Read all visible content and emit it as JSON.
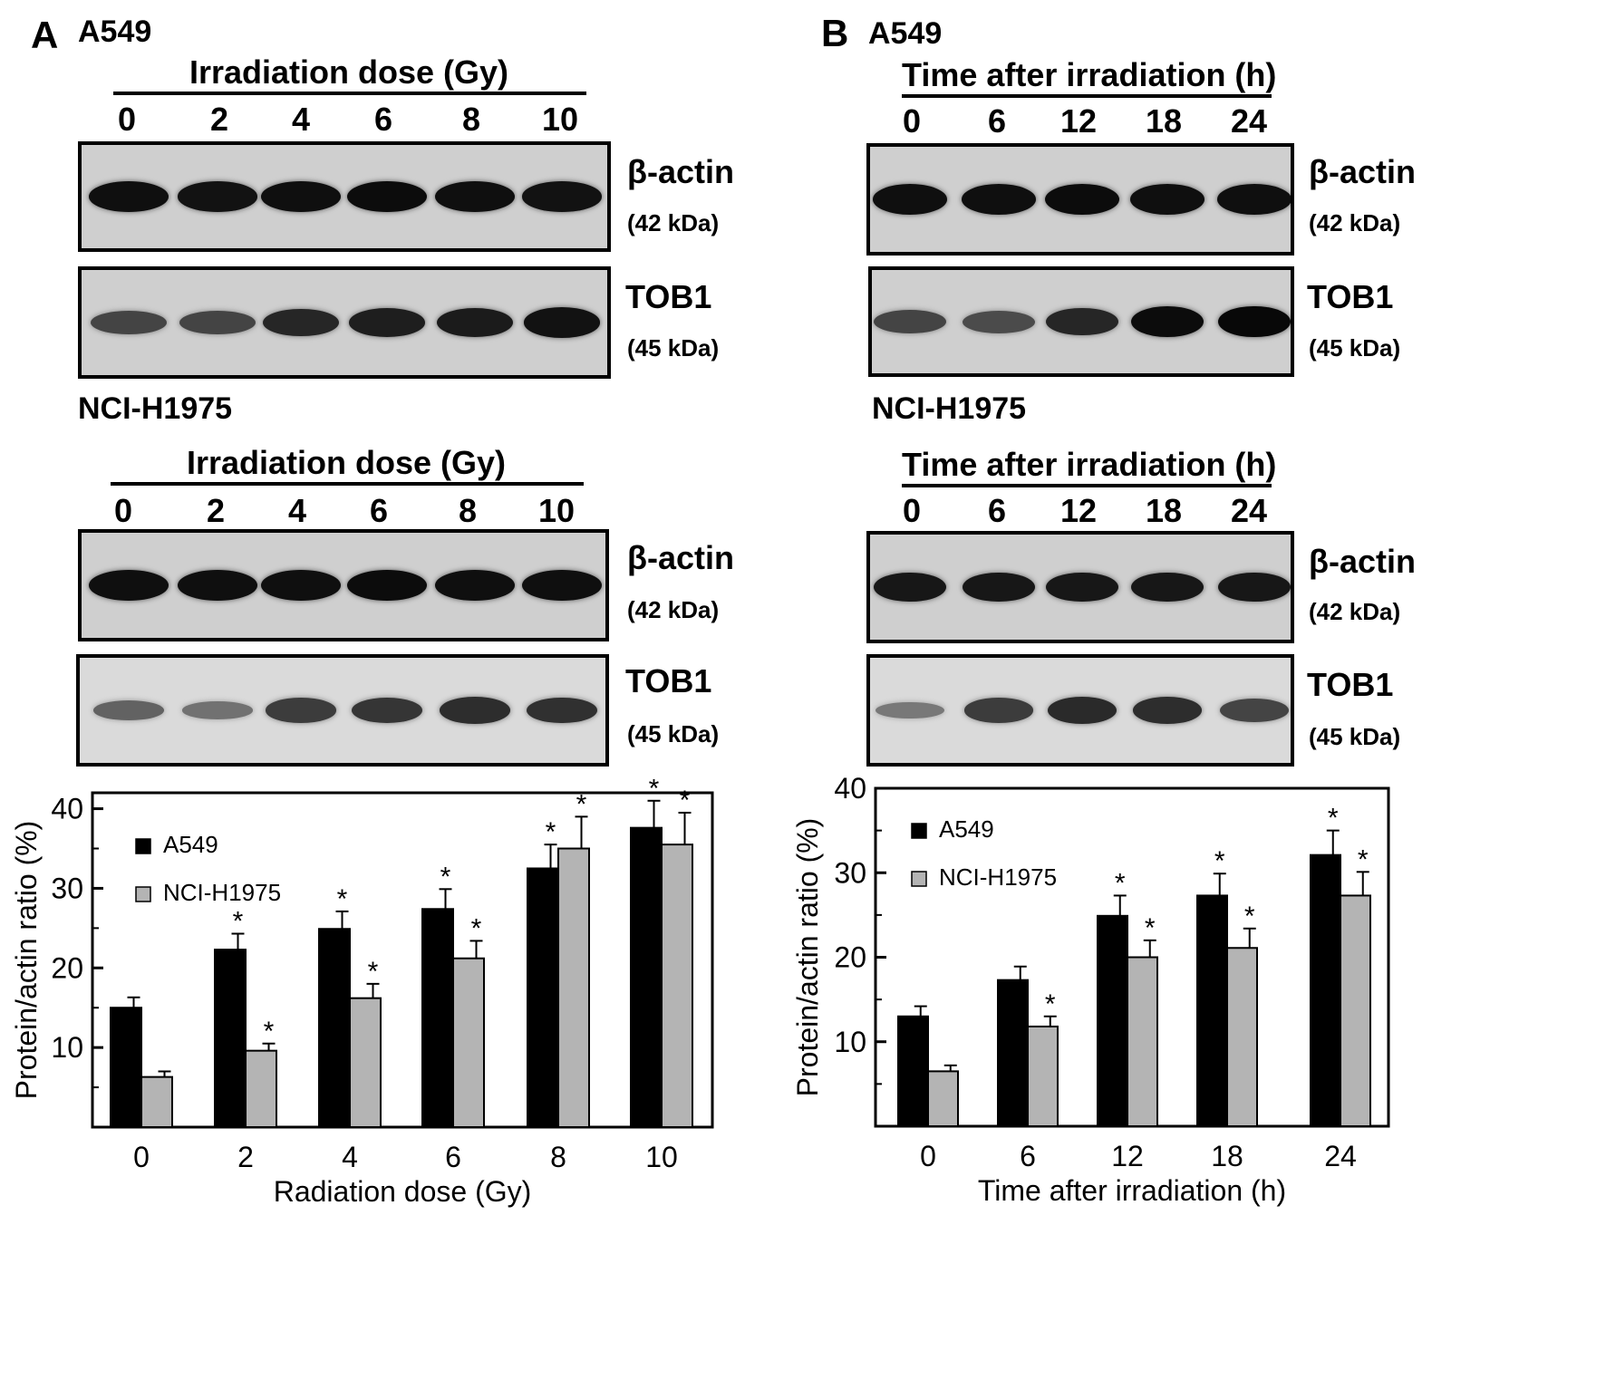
{
  "panelA": {
    "letter": "A",
    "top": {
      "cell_line": "A549",
      "header": "Irradiation dose (Gy)",
      "lanes": [
        "0",
        "2",
        "4",
        "6",
        "8",
        "10"
      ],
      "blots": [
        {
          "name": "β-actin",
          "size": "(42 kDa)",
          "intensity": [
            0.9,
            0.88,
            0.9,
            0.92,
            0.9,
            0.88
          ]
        },
        {
          "name": "TOB1",
          "size": "(45 kDa)",
          "intensity": [
            0.55,
            0.55,
            0.75,
            0.8,
            0.82,
            0.88
          ]
        }
      ]
    },
    "bottom": {
      "cell_line": "NCI-H1975",
      "header": "Irradiation dose (Gy)",
      "lanes": [
        "0",
        "2",
        "4",
        "6",
        "8",
        "10"
      ],
      "blots": [
        {
          "name": "β-actin",
          "size": "(42 kDa)",
          "intensity": [
            0.9,
            0.9,
            0.9,
            0.92,
            0.9,
            0.9
          ]
        },
        {
          "name": "TOB1",
          "size": "(45 kDa)",
          "intensity": [
            0.35,
            0.25,
            0.6,
            0.65,
            0.7,
            0.68
          ]
        }
      ]
    }
  },
  "panelB": {
    "letter": "B",
    "top": {
      "cell_line": "A549",
      "header": "Time after irradiation (h)",
      "lanes": [
        "0",
        "6",
        "12",
        "18",
        "24"
      ],
      "blots": [
        {
          "name": "β-actin",
          "size": "(42 kDa)",
          "intensity": [
            0.9,
            0.9,
            0.92,
            0.9,
            0.9
          ]
        },
        {
          "name": "TOB1",
          "size": "(45 kDa)",
          "intensity": [
            0.55,
            0.5,
            0.75,
            0.92,
            0.95
          ]
        }
      ]
    },
    "bottom": {
      "cell_line": "NCI-H1975",
      "header": "Time after irradiation (h)",
      "lanes": [
        "0",
        "6",
        "12",
        "18",
        "24"
      ],
      "blots": [
        {
          "name": "β-actin",
          "size": "(42 kDa)",
          "intensity": [
            0.85,
            0.85,
            0.85,
            0.85,
            0.85
          ]
        },
        {
          "name": "TOB1",
          "size": "(45 kDa)",
          "intensity": [
            0.2,
            0.6,
            0.72,
            0.7,
            0.55
          ]
        }
      ]
    }
  },
  "chart_data": [
    {
      "type": "bar",
      "categories": [
        "0",
        "2",
        "4",
        "6",
        "8",
        "10"
      ],
      "series": [
        {
          "name": "A549",
          "values": [
            15.0,
            22.3,
            24.9,
            27.4,
            32.5,
            37.6
          ],
          "errors": [
            1.3,
            2.0,
            2.2,
            2.5,
            3.0,
            3.4
          ],
          "sig": [
            false,
            true,
            true,
            true,
            true,
            true
          ],
          "color": "#000000"
        },
        {
          "name": "NCI-H1975",
          "values": [
            6.3,
            9.6,
            16.2,
            21.2,
            35.0,
            35.5
          ],
          "errors": [
            0.7,
            0.9,
            1.8,
            2.2,
            4.0,
            4.0
          ],
          "sig": [
            false,
            true,
            true,
            true,
            true,
            true
          ],
          "color": "#b4b4b4"
        }
      ],
      "xlabel": "Radiation dose (Gy)",
      "ylabel": "Protein/actin ratio (%)",
      "ylim": [
        0,
        42
      ],
      "yticks": [
        10,
        20,
        30,
        40
      ],
      "sig_marker": "*",
      "grid": false,
      "legend": "top-left"
    },
    {
      "type": "bar",
      "categories": [
        "0",
        "6",
        "12",
        "18",
        "24"
      ],
      "series": [
        {
          "name": "A549",
          "values": [
            13.0,
            17.3,
            24.9,
            27.3,
            32.1
          ],
          "errors": [
            1.2,
            1.6,
            2.4,
            2.6,
            2.9
          ],
          "sig": [
            false,
            false,
            true,
            true,
            true
          ],
          "color": "#000000"
        },
        {
          "name": "NCI-H1975",
          "values": [
            6.5,
            11.8,
            20.0,
            21.1,
            27.3
          ],
          "errors": [
            0.7,
            1.2,
            2.0,
            2.3,
            2.8
          ],
          "sig": [
            false,
            true,
            true,
            true,
            true
          ],
          "color": "#b4b4b4"
        }
      ],
      "xlabel": "Time after irradiation (h)",
      "ylabel": "Protein/actin ratio (%)",
      "ylim": [
        0,
        40
      ],
      "yticks": [
        10,
        20,
        30,
        40
      ],
      "sig_marker": "*",
      "grid": false,
      "legend": "top-left"
    }
  ]
}
